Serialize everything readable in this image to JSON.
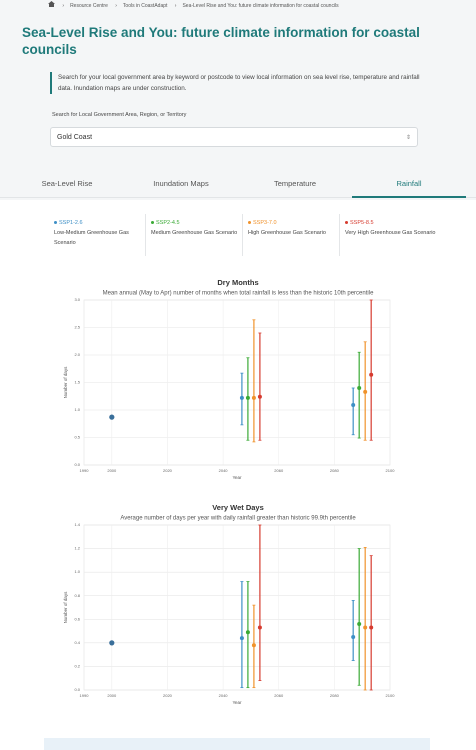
{
  "breadcrumb": [
    "Resource Centre",
    "Tools in CoastAdapt",
    "Sea-Level Rise and You: future climate information for coastal councils"
  ],
  "title": "Sea-Level Rise and You: future climate information for coastal councils",
  "intro": "Search for your local government area by keyword or postcode to view local information on sea level rise, temperature and rainfall data. Inundation maps are under construction.",
  "search_label": "Search for Local Government Area, Region, or Territory",
  "search_value": "Gold Coast",
  "tabs": [
    "Sea-Level Rise",
    "Inundation Maps",
    "Temperature",
    "Rainfall"
  ],
  "active_tab": 3,
  "scenarios": [
    {
      "name": "SSP1-2.6",
      "description": "Low-Medium Greenhouse Gas Scenario",
      "color": "#3d8fc6"
    },
    {
      "name": "SSP2-4.5",
      "description": "Medium Greenhouse Gas Scenario",
      "color": "#3aaa35"
    },
    {
      "name": "SSP3-7.0",
      "description": "High Greenhouse Gas Scenario",
      "color": "#f0922b"
    },
    {
      "name": "SSP5-8.5",
      "description": "Very High Greenhouse Gas Scenario",
      "color": "#d63b2f"
    }
  ],
  "chart_data": [
    {
      "type": "errorbar",
      "title": "Dry Months",
      "subtitle": "Mean annual (May to Apr) number of months when total rainfall is less than the historic 10th percentile",
      "xlabel": "Year",
      "ylabel": "Number of days",
      "xlim": [
        1990,
        2100
      ],
      "xticks": [
        1990,
        2000,
        2020,
        2040,
        2060,
        2080,
        2100
      ],
      "ylim": [
        0,
        3
      ],
      "yticks": [
        {
          "value": 0,
          "label": "0.0"
        },
        0.5,
        {
          "value": 1,
          "label": "1.0"
        },
        1.5,
        {
          "value": 2,
          "label": "2.0"
        },
        2.5,
        {
          "value": 3,
          "label": "3.0"
        }
      ],
      "grid": true,
      "baseline": {
        "x": [
          2000
        ],
        "values": [
          0.87
        ],
        "color": "#3a6f9a"
      },
      "x": [
        2050,
        2090
      ],
      "series": [
        {
          "color": "#3d8fc6",
          "values": [
            1.22,
            1.09
          ],
          "lower": [
            0.73,
            0.55
          ],
          "upper": [
            1.67,
            1.4
          ]
        },
        {
          "color": "#3aaa35",
          "values": [
            1.22,
            1.4
          ],
          "lower": [
            0.45,
            0.49
          ],
          "upper": [
            1.95,
            2.05
          ]
        },
        {
          "color": "#f0922b",
          "values": [
            1.22,
            1.33
          ],
          "lower": [
            0.42,
            0.45
          ],
          "upper": [
            2.64,
            2.24
          ]
        },
        {
          "color": "#d63b2f",
          "values": [
            1.24,
            1.64
          ],
          "lower": [
            0.45,
            0.45
          ],
          "upper": [
            2.4,
            3.0
          ]
        }
      ]
    },
    {
      "type": "errorbar",
      "title": "Very Wet Days",
      "subtitle": "Average number of days per year with daily rainfall greater than historic 99.9th percentile",
      "xlabel": "Year",
      "ylabel": "Number of days",
      "xlim": [
        1990,
        2100
      ],
      "xticks": [
        1990,
        2000,
        2020,
        2040,
        2060,
        2080,
        2100
      ],
      "ylim": [
        0,
        1.4
      ],
      "yticks": [
        {
          "value": 0,
          "label": "0.0"
        },
        0.2,
        0.4,
        0.6,
        0.8,
        {
          "value": 1,
          "label": "1.0"
        },
        1.2,
        1.4
      ],
      "grid": true,
      "baseline": {
        "x": [
          2000
        ],
        "values": [
          0.4
        ],
        "color": "#3a6f9a"
      },
      "x": [
        2050,
        2090
      ],
      "series": [
        {
          "color": "#3d8fc6",
          "values": [
            0.44,
            0.45
          ],
          "lower": [
            0.02,
            0.25
          ],
          "upper": [
            0.92,
            0.76
          ]
        },
        {
          "color": "#3aaa35",
          "values": [
            0.49,
            0.56
          ],
          "lower": [
            0.02,
            0.04
          ],
          "upper": [
            0.92,
            1.2
          ]
        },
        {
          "color": "#f0922b",
          "values": [
            0.38,
            0.53
          ],
          "lower": [
            0.02,
            0.0
          ],
          "upper": [
            0.72,
            1.21
          ]
        },
        {
          "color": "#d63b2f",
          "values": [
            0.53,
            0.53
          ],
          "lower": [
            0.08,
            0.0
          ],
          "upper": [
            1.4,
            1.14
          ]
        }
      ]
    }
  ]
}
